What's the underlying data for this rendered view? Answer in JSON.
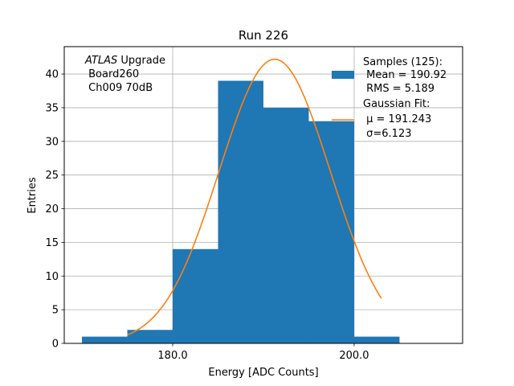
{
  "chart_data": {
    "type": "bar",
    "title": "Run 226",
    "xlabel": "Energy [ADC Counts]",
    "ylabel": "Entries",
    "xlim": [
      168.05,
      211.95
    ],
    "ylim": [
      0,
      44.07
    ],
    "grid": true,
    "x_ticks": [
      180.0,
      200.0
    ],
    "x_tick_labels": [
      "180.0",
      "200.0"
    ],
    "y_ticks": [
      0,
      5,
      10,
      15,
      20,
      25,
      30,
      35,
      40
    ],
    "y_tick_labels": [
      "0",
      "5",
      "10",
      "15",
      "20",
      "25",
      "30",
      "35",
      "40"
    ],
    "histogram": {
      "name": "Samples",
      "color": "#1f77b4",
      "bin_edges": [
        170,
        175,
        180,
        185,
        190,
        195,
        200,
        205
      ],
      "counts": [
        1,
        2,
        14,
        39,
        35,
        33,
        1
      ]
    },
    "fit": {
      "name": "Gaussian Fit",
      "color": "#ff7f0e",
      "mu": 191.243,
      "sigma": 6.123,
      "amplitude": 42.2,
      "x_range": [
        175,
        203
      ]
    },
    "annotation": {
      "line1_italic": "ATLAS",
      "line1_rest": " Upgrade",
      "line2": " Board260",
      "line3": " Ch009 70dB"
    },
    "legend": {
      "placement": "top-right",
      "entries": [
        {
          "type": "patch",
          "color": "#1f77b4",
          "lines": [
            "Samples (125):",
            " Mean = 190.92",
            " RMS = 5.189"
          ]
        },
        {
          "type": "line",
          "color": "#ff7f0e",
          "lines": [
            "Gaussian Fit:",
            " μ = 191.243",
            " σ=6.123"
          ]
        }
      ]
    }
  }
}
